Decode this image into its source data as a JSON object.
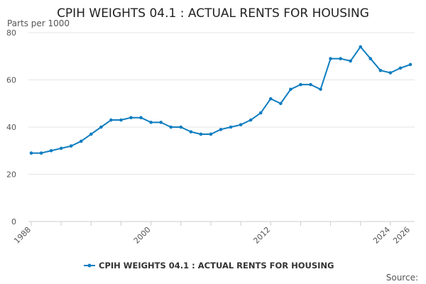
{
  "chart_data": {
    "type": "line",
    "title": "CPIH WEIGHTS 04.1 : ACTUAL RENTS FOR HOUSING",
    "ylabel": "Parts per 1000",
    "xlabel": "",
    "ylim": [
      0,
      80
    ],
    "yticks": [
      0,
      20,
      40,
      60,
      80
    ],
    "xlim": [
      1988,
      2026
    ],
    "xticks": [
      1988,
      2000,
      2012,
      2024,
      2026
    ],
    "series": [
      {
        "name": "CPIH WEIGHTS 04.1 : ACTUAL RENTS FOR HOUSING",
        "color": "#0f7dc0",
        "x": [
          1988,
          1989,
          1990,
          1991,
          1992,
          1993,
          1994,
          1995,
          1996,
          1997,
          1998,
          1999,
          2000,
          2001,
          2002,
          2003,
          2004,
          2005,
          2006,
          2007,
          2008,
          2009,
          2010,
          2011,
          2012,
          2013,
          2014,
          2015,
          2016,
          2017,
          2018,
          2019,
          2020,
          2021,
          2022,
          2023,
          2024,
          2025,
          2026
        ],
        "values": [
          29,
          29,
          30,
          31,
          32,
          34,
          37,
          40,
          43,
          43,
          44,
          44,
          42,
          42,
          40,
          40,
          38,
          37,
          37,
          39,
          40,
          41,
          43,
          46,
          52,
          50,
          56,
          58,
          58,
          56,
          69,
          69,
          68,
          74,
          69,
          64,
          63,
          65,
          66.5
        ]
      }
    ],
    "legend": "bottom-center",
    "grid": true
  },
  "footer": {
    "source_label": "Source:"
  }
}
